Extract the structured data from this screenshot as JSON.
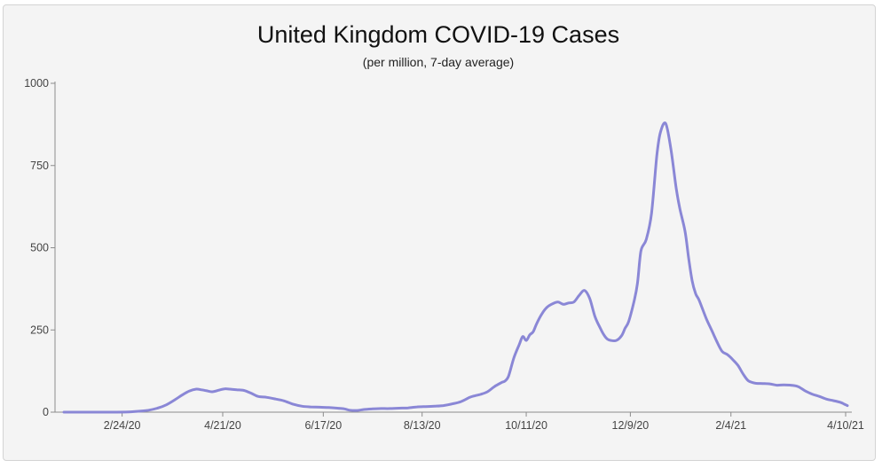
{
  "chart_data": {
    "type": "line",
    "title": "United Kingdom COVID-19 Cases",
    "subtitle": "(per million, 7-day average)",
    "xlabel": "",
    "ylabel": "",
    "ylim": [
      0,
      1000
    ],
    "y_ticks": [
      "0",
      "250",
      "500",
      "750",
      "1000"
    ],
    "y_tick_values": [
      0,
      250,
      500,
      750,
      1000
    ],
    "x_ticks": [
      "2/24/20",
      "4/21/20",
      "6/17/20",
      "8/13/20",
      "10/11/20",
      "12/9/20",
      "2/4/21",
      "4/10/21"
    ],
    "x_tick_days": [
      53,
      110,
      167,
      223,
      282,
      341,
      398,
      463
    ],
    "x_range_days": [
      20,
      465
    ],
    "grid": false,
    "line_color": "#8a87d6",
    "series": [
      {
        "name": "United Kingdom",
        "x_days": [
          20,
          40,
          50,
          58,
          63,
          68,
          73,
          78,
          83,
          87,
          91,
          95,
          98,
          101,
          104,
          108,
          111,
          114,
          118,
          122,
          126,
          130,
          135,
          140,
          145,
          150,
          155,
          160,
          165,
          170,
          175,
          179,
          182,
          186,
          190,
          195,
          200,
          205,
          210,
          215,
          220,
          225,
          230,
          235,
          240,
          245,
          250,
          253,
          256,
          260,
          264,
          268,
          270,
          272,
          275,
          278,
          280,
          282,
          284,
          286,
          288,
          291,
          294,
          297,
          300,
          303,
          306,
          309,
          312,
          315,
          318,
          321,
          324,
          326,
          328,
          330,
          333,
          336,
          338,
          340,
          343,
          345,
          347,
          350,
          353,
          356,
          358,
          361,
          364,
          367,
          369,
          372,
          374,
          376,
          378,
          380,
          384,
          387,
          390,
          393,
          396,
          399,
          402,
          405,
          408,
          412,
          416,
          420,
          424,
          428,
          432,
          436,
          440,
          444,
          448,
          452,
          456,
          460,
          462,
          464
        ],
        "values": [
          0,
          0,
          0,
          1,
          3,
          6,
          12,
          22,
          38,
          52,
          64,
          70,
          68,
          65,
          62,
          67,
          71,
          70,
          68,
          66,
          58,
          48,
          45,
          40,
          34,
          24,
          18,
          16,
          15,
          14,
          12,
          10,
          6,
          5,
          8,
          10,
          11,
          11,
          12,
          13,
          16,
          17,
          18,
          20,
          25,
          32,
          45,
          50,
          54,
          62,
          78,
          90,
          95,
          110,
          165,
          205,
          230,
          218,
          235,
          245,
          270,
          300,
          320,
          330,
          335,
          328,
          332,
          335,
          355,
          370,
          345,
          290,
          255,
          235,
          222,
          218,
          218,
          232,
          255,
          275,
          335,
          390,
          490,
          525,
          605,
          780,
          850,
          878,
          800,
          680,
          620,
          550,
          470,
          400,
          360,
          340,
          285,
          250,
          215,
          185,
          175,
          160,
          142,
          115,
          95,
          88,
          87,
          86,
          82,
          83,
          82,
          78,
          65,
          55,
          48,
          40,
          35,
          30,
          25,
          20
        ]
      }
    ]
  }
}
